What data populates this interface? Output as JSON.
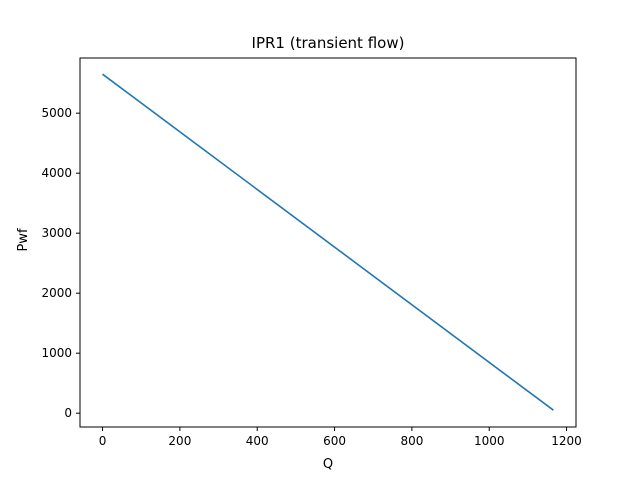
{
  "chart_data": {
    "type": "line",
    "title": "IPR1 (transient flow)",
    "xlabel": "Q",
    "ylabel": "Pwf",
    "xlim": [
      -58.3,
      1224.4
    ],
    "ylim": [
      -230,
      5920
    ],
    "x_ticks": [
      0,
      200,
      400,
      600,
      800,
      1000,
      1200
    ],
    "y_ticks": [
      0,
      1000,
      2000,
      3000,
      4000,
      5000
    ],
    "grid": false,
    "legend": "none",
    "series": [
      {
        "color": "#1f77b4",
        "points": [
          {
            "x": 0,
            "y": 5650
          },
          {
            "x": 1166,
            "y": 50
          }
        ]
      }
    ]
  }
}
